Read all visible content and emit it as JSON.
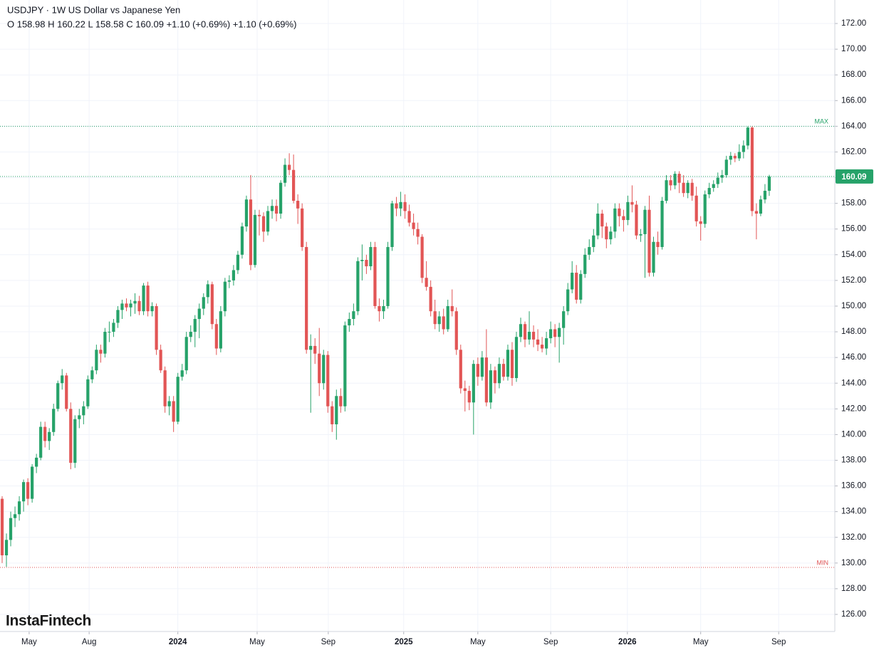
{
  "chart_data": {
    "type": "candlestick",
    "title": "USDJPY · 1W US Dollar vs Japanese Yen",
    "ohlc_text": "O 158.98 H 160.22 L 158.58 C 160.09 +1.10 (+0.69%) +1.10 (+0.69%)",
    "watermark": "InstaFintech",
    "up_color": "#26a269",
    "down_color": "#e25555",
    "grid": true,
    "ylim": [
      124.67,
      173.83
    ],
    "yticks": [
      {
        "value": 126,
        "label": "126.00"
      },
      {
        "value": 128,
        "label": "128.00"
      },
      {
        "value": 130,
        "label": "130.00"
      },
      {
        "value": 132,
        "label": "132.00"
      },
      {
        "value": 134,
        "label": "134.00"
      },
      {
        "value": 136,
        "label": "136.00"
      },
      {
        "value": 138,
        "label": "138.00"
      },
      {
        "value": 140,
        "label": "140.00"
      },
      {
        "value": 142,
        "label": "142.00"
      },
      {
        "value": 144,
        "label": "144.00"
      },
      {
        "value": 146,
        "label": "146.00"
      },
      {
        "value": 148,
        "label": "148.00"
      },
      {
        "value": 150,
        "label": "150.00"
      },
      {
        "value": 152,
        "label": "152.00"
      },
      {
        "value": 154,
        "label": "154.00"
      },
      {
        "value": 156,
        "label": "156.00"
      },
      {
        "value": 158,
        "label": "158.00"
      },
      {
        "value": 160,
        "label": "160.00"
      },
      {
        "value": 162,
        "label": "162.00"
      },
      {
        "value": 164,
        "label": "164.00"
      },
      {
        "value": 166,
        "label": "166.00"
      },
      {
        "value": 168,
        "label": "168.00"
      },
      {
        "value": 170,
        "label": "170.00"
      },
      {
        "value": 172,
        "label": "172.00"
      }
    ],
    "xlim": [
      -0.5,
      194.3
    ],
    "xticks": [
      {
        "value": 6.3,
        "label": "May"
      },
      {
        "value": 20.3,
        "label": "Aug"
      },
      {
        "value": 41,
        "label": "2024"
      },
      {
        "value": 59.5,
        "label": "May"
      },
      {
        "value": 76.1,
        "label": "Sep"
      },
      {
        "value": 93.7,
        "label": "2025"
      },
      {
        "value": 111,
        "label": "May"
      },
      {
        "value": 128,
        "label": "Sep"
      },
      {
        "value": 145.9,
        "label": "2026"
      },
      {
        "value": 163,
        "label": "May"
      },
      {
        "value": 181.2,
        "label": "Sep"
      }
    ],
    "max_line": {
      "label": "MAX",
      "value": 164.0,
      "color": "#26a269"
    },
    "min_line": {
      "label": "MIN",
      "value": 129.66,
      "color": "#e25555"
    },
    "last_price": {
      "value": 160.09,
      "label": "160.09",
      "color": "#26a269"
    },
    "ohlc": [
      [
        135.0,
        135.2,
        130.0,
        130.6
      ],
      [
        130.6,
        132.3,
        129.7,
        131.8
      ],
      [
        131.8,
        134.0,
        131.3,
        133.5
      ],
      [
        133.5,
        134.4,
        132.8,
        133.8
      ],
      [
        133.8,
        135.2,
        133.3,
        134.8
      ],
      [
        134.8,
        136.5,
        134.0,
        136.3
      ],
      [
        136.3,
        136.6,
        134.5,
        135.0
      ],
      [
        135.0,
        137.7,
        134.7,
        137.5
      ],
      [
        137.5,
        138.5,
        137.0,
        138.2
      ],
      [
        138.2,
        141.0,
        138.0,
        140.6
      ],
      [
        140.6,
        141.0,
        139.0,
        139.5
      ],
      [
        139.5,
        140.5,
        138.8,
        140.2
      ],
      [
        140.2,
        142.4,
        139.9,
        142.0
      ],
      [
        142.0,
        144.2,
        141.8,
        144.0
      ],
      [
        144.0,
        145.1,
        143.5,
        144.6
      ],
      [
        144.6,
        144.8,
        141.8,
        142.0
      ],
      [
        142.0,
        142.5,
        137.3,
        137.8
      ],
      [
        137.8,
        141.5,
        137.4,
        141.2
      ],
      [
        141.2,
        142.0,
        140.5,
        141.5
      ],
      [
        141.5,
        142.6,
        140.8,
        142.2
      ],
      [
        142.2,
        144.6,
        142.0,
        144.3
      ],
      [
        144.3,
        145.3,
        144.0,
        145.0
      ],
      [
        145.0,
        147.0,
        144.7,
        146.6
      ],
      [
        146.6,
        147.0,
        145.6,
        146.3
      ],
      [
        146.3,
        148.3,
        146.0,
        148.0
      ],
      [
        148.0,
        148.8,
        147.2,
        148.0
      ],
      [
        148.0,
        149.0,
        147.6,
        148.7
      ],
      [
        148.7,
        150.0,
        148.3,
        149.7
      ],
      [
        149.7,
        150.5,
        149.0,
        150.2
      ],
      [
        150.2,
        150.6,
        149.6,
        149.9
      ],
      [
        149.9,
        150.5,
        149.2,
        150.2
      ],
      [
        150.2,
        151.0,
        149.4,
        150.4
      ],
      [
        150.4,
        150.8,
        149.3,
        149.6
      ],
      [
        149.6,
        151.8,
        149.3,
        151.6
      ],
      [
        151.6,
        151.9,
        149.2,
        149.6
      ],
      [
        149.6,
        150.3,
        149.2,
        150.0
      ],
      [
        150.0,
        150.2,
        146.2,
        146.6
      ],
      [
        146.6,
        147.0,
        144.8,
        145.0
      ],
      [
        145.0,
        145.3,
        141.7,
        142.2
      ],
      [
        142.2,
        143.0,
        141.5,
        142.6
      ],
      [
        142.6,
        143.0,
        140.2,
        141.0
      ],
      [
        141.0,
        144.8,
        140.8,
        144.5
      ],
      [
        144.5,
        145.5,
        144.2,
        145.0
      ],
      [
        145.0,
        148.0,
        144.7,
        147.6
      ],
      [
        147.6,
        148.5,
        147.2,
        148.0
      ],
      [
        148.0,
        149.3,
        146.8,
        149.0
      ],
      [
        149.0,
        150.2,
        147.5,
        149.8
      ],
      [
        149.8,
        151.0,
        149.3,
        150.7
      ],
      [
        150.7,
        152.0,
        150.2,
        151.7
      ],
      [
        151.7,
        151.9,
        148.2,
        148.6
      ],
      [
        148.6,
        149.0,
        146.2,
        146.7
      ],
      [
        146.7,
        150.0,
        146.4,
        149.6
      ],
      [
        149.6,
        152.2,
        149.2,
        151.9
      ],
      [
        151.9,
        152.4,
        151.4,
        152.0
      ],
      [
        152.0,
        153.2,
        151.6,
        152.8
      ],
      [
        152.8,
        154.3,
        152.5,
        154.0
      ],
      [
        154.0,
        156.5,
        153.7,
        156.2
      ],
      [
        156.2,
        158.6,
        155.8,
        158.3
      ],
      [
        158.3,
        160.2,
        152.8,
        153.2
      ],
      [
        153.2,
        157.5,
        153.0,
        157.1
      ],
      [
        157.1,
        157.5,
        155.5,
        157.0
      ],
      [
        157.0,
        157.3,
        155.0,
        155.8
      ],
      [
        155.8,
        157.8,
        155.5,
        157.4
      ],
      [
        157.4,
        158.3,
        156.8,
        157.8
      ],
      [
        157.8,
        158.3,
        156.6,
        157.2
      ],
      [
        157.2,
        159.8,
        156.8,
        159.6
      ],
      [
        159.6,
        161.5,
        159.3,
        161.0
      ],
      [
        161.0,
        161.9,
        160.2,
        160.6
      ],
      [
        160.6,
        161.8,
        158.0,
        158.2
      ],
      [
        158.2,
        158.7,
        156.4,
        157.6
      ],
      [
        157.6,
        158.0,
        154.3,
        154.6
      ],
      [
        154.6,
        155.0,
        146.3,
        146.6
      ],
      [
        146.6,
        147.8,
        141.7,
        146.9
      ],
      [
        146.9,
        147.5,
        145.5,
        146.3
      ],
      [
        146.3,
        148.3,
        143.0,
        144.0
      ],
      [
        144.0,
        146.6,
        143.5,
        146.2
      ],
      [
        146.2,
        146.5,
        141.7,
        142.2
      ],
      [
        142.2,
        142.6,
        140.2,
        140.8
      ],
      [
        140.8,
        143.5,
        139.6,
        143.0
      ],
      [
        143.0,
        143.6,
        141.7,
        142.2
      ],
      [
        142.2,
        148.8,
        141.8,
        148.5
      ],
      [
        148.5,
        149.5,
        148.0,
        149.0
      ],
      [
        149.0,
        150.2,
        148.5,
        149.6
      ],
      [
        149.6,
        153.8,
        149.3,
        153.5
      ],
      [
        153.5,
        154.8,
        152.0,
        153.6
      ],
      [
        153.6,
        154.0,
        152.5,
        153.1
      ],
      [
        153.1,
        155.0,
        152.8,
        154.6
      ],
      [
        154.6,
        155.0,
        149.8,
        150.0
      ],
      [
        150.0,
        150.6,
        148.8,
        149.6
      ],
      [
        149.6,
        150.5,
        149.0,
        150.0
      ],
      [
        150.0,
        155.0,
        149.8,
        154.6
      ],
      [
        154.6,
        158.2,
        154.3,
        158.0
      ],
      [
        158.0,
        158.5,
        157.0,
        157.6
      ],
      [
        157.6,
        158.9,
        157.0,
        158.1
      ],
      [
        158.1,
        158.7,
        156.8,
        157.4
      ],
      [
        157.4,
        157.9,
        156.2,
        156.5
      ],
      [
        156.5,
        157.2,
        155.5,
        156.0
      ],
      [
        156.0,
        156.5,
        154.8,
        155.4
      ],
      [
        155.4,
        155.6,
        151.8,
        152.2
      ],
      [
        152.2,
        153.5,
        151.2,
        151.5
      ],
      [
        151.5,
        152.0,
        149.2,
        149.6
      ],
      [
        149.6,
        150.5,
        148.2,
        148.6
      ],
      [
        148.6,
        149.6,
        148.0,
        149.2
      ],
      [
        149.2,
        149.8,
        147.8,
        148.2
      ],
      [
        148.2,
        150.5,
        148.0,
        150.0
      ],
      [
        150.0,
        151.3,
        149.2,
        149.6
      ],
      [
        149.6,
        149.9,
        146.2,
        146.6
      ],
      [
        146.6,
        147.0,
        143.2,
        143.6
      ],
      [
        143.6,
        144.2,
        141.8,
        143.4
      ],
      [
        143.4,
        143.8,
        141.9,
        142.5
      ],
      [
        142.5,
        145.8,
        140.0,
        145.5
      ],
      [
        145.5,
        146.0,
        143.8,
        144.5
      ],
      [
        144.5,
        146.5,
        144.2,
        146.0
      ],
      [
        146.0,
        148.2,
        142.2,
        142.5
      ],
      [
        142.5,
        145.5,
        142.0,
        145.0
      ],
      [
        145.0,
        145.3,
        143.2,
        144.0
      ],
      [
        144.0,
        146.0,
        143.6,
        145.5
      ],
      [
        145.5,
        145.9,
        144.2,
        144.5
      ],
      [
        144.5,
        147.0,
        144.2,
        146.6
      ],
      [
        146.6,
        147.2,
        143.8,
        144.4
      ],
      [
        144.4,
        148.0,
        144.1,
        147.6
      ],
      [
        147.6,
        149.1,
        147.2,
        148.6
      ],
      [
        148.6,
        148.8,
        146.8,
        147.4
      ],
      [
        147.4,
        149.6,
        147.0,
        148.0
      ],
      [
        148.0,
        148.5,
        146.8,
        147.4
      ],
      [
        147.4,
        148.2,
        146.5,
        147.0
      ],
      [
        147.0,
        147.6,
        146.4,
        146.7
      ],
      [
        146.7,
        148.0,
        146.2,
        147.5
      ],
      [
        147.5,
        148.8,
        147.1,
        148.2
      ],
      [
        148.2,
        148.6,
        146.8,
        147.6
      ],
      [
        147.6,
        148.7,
        145.6,
        148.3
      ],
      [
        148.3,
        150.0,
        147.0,
        149.6
      ],
      [
        149.6,
        151.8,
        149.3,
        151.3
      ],
      [
        151.3,
        153.5,
        151.0,
        152.6
      ],
      [
        152.6,
        153.2,
        150.2,
        150.5
      ],
      [
        150.5,
        152.8,
        150.2,
        152.5
      ],
      [
        152.5,
        154.5,
        152.2,
        154.0
      ],
      [
        154.0,
        155.2,
        153.6,
        154.6
      ],
      [
        154.6,
        156.0,
        154.2,
        155.5
      ],
      [
        155.5,
        158.0,
        155.2,
        157.2
      ],
      [
        157.2,
        157.5,
        155.3,
        156.2
      ],
      [
        156.2,
        156.5,
        154.5,
        155.2
      ],
      [
        155.2,
        156.2,
        154.8,
        155.8
      ],
      [
        155.8,
        158.0,
        155.3,
        157.6
      ],
      [
        157.6,
        158.0,
        156.2,
        157.0
      ],
      [
        157.0,
        157.5,
        155.8,
        156.7
      ],
      [
        156.7,
        158.6,
        156.3,
        158.1
      ],
      [
        158.1,
        159.4,
        157.3,
        157.9
      ],
      [
        157.9,
        158.2,
        155.2,
        155.5
      ],
      [
        155.5,
        156.0,
        155.0,
        155.6
      ],
      [
        155.6,
        157.8,
        152.2,
        157.5
      ],
      [
        157.5,
        158.6,
        152.3,
        152.6
      ],
      [
        152.6,
        155.4,
        152.3,
        155.0
      ],
      [
        155.0,
        155.8,
        154.0,
        154.6
      ],
      [
        154.6,
        158.5,
        154.4,
        158.2
      ],
      [
        158.2,
        160.2,
        158.0,
        159.8
      ],
      [
        159.8,
        160.2,
        159.0,
        159.4
      ],
      [
        159.4,
        160.5,
        159.1,
        160.3
      ],
      [
        160.3,
        160.5,
        158.8,
        159.6
      ],
      [
        159.6,
        160.2,
        158.5,
        158.8
      ],
      [
        158.8,
        159.8,
        158.4,
        159.6
      ],
      [
        159.6,
        159.9,
        158.2,
        158.6
      ],
      [
        158.6,
        159.3,
        156.2,
        156.6
      ],
      [
        156.6,
        157.0,
        155.1,
        156.4
      ],
      [
        156.4,
        159.0,
        156.1,
        158.7
      ],
      [
        158.7,
        159.6,
        158.4,
        159.2
      ],
      [
        159.2,
        159.8,
        158.9,
        159.5
      ],
      [
        159.5,
        160.4,
        159.2,
        160.0
      ],
      [
        160.0,
        160.6,
        159.6,
        160.2
      ],
      [
        160.2,
        161.7,
        160.0,
        161.4
      ],
      [
        161.4,
        162.0,
        161.0,
        161.7
      ],
      [
        161.7,
        161.9,
        161.2,
        161.5
      ],
      [
        161.5,
        162.6,
        161.3,
        162.0
      ],
      [
        162.0,
        162.9,
        161.5,
        162.5
      ],
      [
        162.5,
        164.0,
        162.2,
        163.9
      ],
      [
        163.9,
        164.0,
        157.0,
        157.4
      ],
      [
        157.4,
        158.0,
        155.2,
        157.2
      ],
      [
        157.2,
        158.6,
        157.0,
        158.3
      ],
      [
        158.3,
        159.5,
        158.0,
        158.98
      ],
      [
        158.98,
        160.22,
        158.58,
        160.09
      ]
    ]
  }
}
